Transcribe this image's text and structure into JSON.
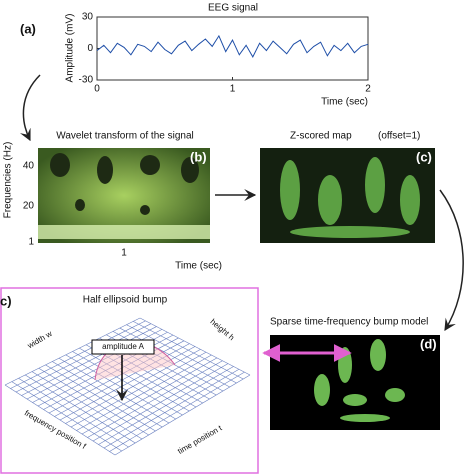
{
  "chart_data": {
    "type": "line",
    "title": "EEG signal",
    "x_label": "Time (sec)",
    "y_label": "Amplitude (mV)",
    "x": [
      0,
      0.05,
      0.1,
      0.15,
      0.2,
      0.25,
      0.3,
      0.35,
      0.4,
      0.45,
      0.5,
      0.55,
      0.6,
      0.65,
      0.7,
      0.75,
      0.8,
      0.85,
      0.9,
      0.95,
      1,
      1.05,
      1.1,
      1.15,
      1.2,
      1.25,
      1.3,
      1.35,
      1.4,
      1.45,
      1.5,
      1.55,
      1.6,
      1.65,
      1.7,
      1.75,
      1.8,
      1.85,
      1.9,
      1.95,
      2
    ],
    "values": [
      -2,
      3,
      -4,
      5,
      1,
      -6,
      4,
      2,
      -3,
      6,
      -1,
      -5,
      3,
      7,
      -2,
      4,
      9,
      2,
      12,
      -3,
      8,
      -6,
      3,
      -8,
      5,
      -2,
      7,
      1,
      -5,
      4,
      8,
      -4,
      2,
      6,
      -7,
      3,
      -2,
      5,
      -4,
      2,
      4
    ],
    "xlim": [
      0,
      2
    ],
    "ylim": [
      -30,
      30
    ],
    "xticks": [
      0,
      1,
      2
    ],
    "yticks": [
      30,
      0,
      -30
    ],
    "color": "#1f4fa8"
  },
  "panels": {
    "a": {
      "label": "(a)"
    },
    "b": {
      "title": "Wavelet transform of the signal",
      "label": "(b)",
      "y_label": "Frequencies (Hz)",
      "yticks": [
        40,
        20,
        1
      ],
      "xticks": [
        1
      ],
      "x_label": "Time (sec)"
    },
    "c": {
      "title": "Z-scored map",
      "note": "(offset=1)",
      "label": "(c)"
    },
    "d": {
      "title": "Sparse time-frequency bump model",
      "label": "(d)"
    },
    "e": {
      "label": "c)",
      "title": "Half ellipsoid bump",
      "width": "width w",
      "height": "height h",
      "amplitude": "amplitude A",
      "frequency": "frequency position f",
      "time": "time position t"
    }
  }
}
